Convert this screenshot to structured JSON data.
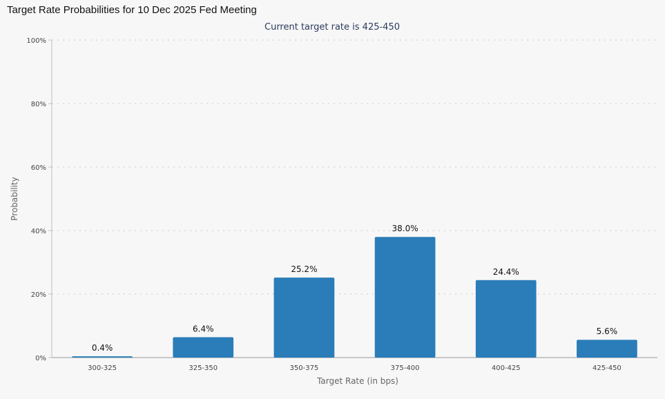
{
  "header": {
    "title": "Target Rate Probabilities for 10 Dec 2025 Fed Meeting"
  },
  "chart_data": {
    "type": "bar",
    "subtitle": "Current target rate is 425-450",
    "xlabel": "Target Rate (in bps)",
    "ylabel": "Probability",
    "categories": [
      "300-325",
      "325-350",
      "350-375",
      "375-400",
      "400-425",
      "425-450"
    ],
    "values": [
      0.4,
      6.4,
      25.2,
      38.0,
      24.4,
      5.6
    ],
    "data_labels": [
      "0.4%",
      "6.4%",
      "25.2%",
      "38.0%",
      "24.4%",
      "5.6%"
    ],
    "ylim": [
      0,
      100
    ],
    "yticks": [
      0,
      20,
      40,
      60,
      80,
      100
    ],
    "ytick_labels": [
      "0%",
      "20%",
      "40%",
      "60%",
      "80%",
      "100%"
    ],
    "grid": true,
    "legend": "none",
    "bar_color": "#2a7db8"
  }
}
